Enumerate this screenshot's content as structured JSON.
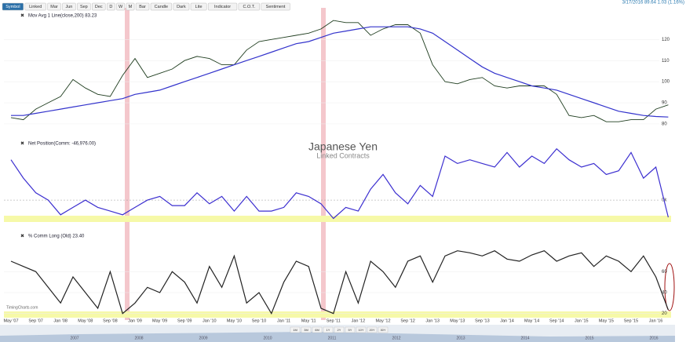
{
  "toolbar": [
    "Symbol",
    "Linked",
    "Mar",
    "Jun",
    "Sep",
    "Dec",
    "D",
    "W",
    "M",
    "Bar",
    "Candle",
    "Dark",
    "Lite",
    "Indicator",
    "C.O.T.",
    "Sentiment"
  ],
  "quote": "3/17/2016 89.64 1.03 (1.16%)",
  "watermark": {
    "title": "Japanese Yen",
    "subtitle": "Linked Contracts"
  },
  "brand": "TimingCharts.com",
  "timeframes": [
    "1M",
    "3M",
    "6M",
    "1Y",
    "2Y",
    "5Y",
    "10Y",
    "20Y",
    "30Y"
  ],
  "navigator_years": [
    "2007",
    "2008",
    "2009",
    "2010",
    "2011",
    "2012",
    "2013",
    "2014",
    "2015",
    "2016"
  ],
  "chart_data": [
    {
      "type": "line",
      "title": "Mov Avg 1 Line(close,200) 83.23",
      "grid": true,
      "ylim": [
        77,
        135
      ],
      "yticks": [
        80,
        90,
        100,
        110,
        120
      ],
      "series": [
        {
          "color": "#1f3d1f",
          "values": [
            83,
            82,
            87,
            90,
            93,
            101,
            97,
            94,
            93,
            103,
            111,
            102,
            104,
            106,
            110,
            112,
            111,
            108,
            108,
            115,
            119,
            120,
            121,
            122,
            123,
            125,
            129,
            128,
            128,
            122,
            125,
            127,
            127,
            123,
            108,
            100,
            99,
            101,
            102,
            98,
            97,
            98,
            98,
            98,
            94,
            84,
            83,
            84,
            81,
            81,
            82,
            82,
            87,
            89
          ]
        },
        {
          "color": "#3333cc",
          "values": [
            84,
            84,
            85,
            86,
            87,
            88,
            89,
            90,
            91,
            92,
            94,
            95,
            96,
            98,
            100,
            102,
            104,
            106,
            108,
            110,
            112,
            114,
            116,
            118,
            119,
            121,
            123,
            124,
            125,
            126,
            126,
            126,
            126,
            125,
            123,
            119,
            115,
            111,
            107,
            104,
            102,
            100,
            98,
            97,
            96,
            94,
            92,
            90,
            88,
            86,
            85,
            84,
            83.5,
            83.23
          ]
        }
      ]
    },
    {
      "type": "line",
      "title": "Net Position(Comm: -46,976.00)",
      "grid": true,
      "ylim": [
        -64,
        165
      ],
      "yticks": [
        {
          "value": 0,
          "label": "0k"
        }
      ],
      "series": [
        {
          "color": "#3c2fd0",
          "values": [
            110,
            60,
            20,
            0,
            -40,
            -20,
            0,
            -20,
            -30,
            -40,
            -20,
            0,
            10,
            -15,
            -15,
            20,
            -10,
            10,
            -30,
            10,
            -30,
            -30,
            -20,
            20,
            10,
            -10,
            -50,
            -20,
            -30,
            30,
            70,
            20,
            -10,
            40,
            10,
            120,
            100,
            110,
            100,
            90,
            130,
            90,
            120,
            100,
            140,
            110,
            90,
            100,
            70,
            80,
            130,
            60,
            90,
            -46.976
          ]
        }
      ]
    },
    {
      "type": "line",
      "title": "% Comm Long (Old) 23.40",
      "grid": true,
      "ylim": [
        16,
        91
      ],
      "yticks": [
        20,
        40,
        60
      ],
      "categories": [
        "May '07",
        null,
        "Sep '07",
        null,
        "Jan '08",
        null,
        "May '08",
        null,
        "Sep '08",
        null,
        "Jan '09",
        null,
        "May '09",
        null,
        "Sep '09",
        null,
        "Jan '10",
        null,
        "May '10",
        null,
        "Sep '10",
        null,
        "Jan '11",
        null,
        "May '11",
        null,
        "Sep '11",
        null,
        "Jan '12",
        null,
        "May '12",
        null,
        "Sep '12",
        null,
        "Jan '13",
        null,
        "May '13",
        null,
        "Sep '13",
        null,
        "Jan '14",
        null,
        "May '14",
        null,
        "Sep '14",
        null,
        "Jan '15",
        null,
        "May '15",
        null,
        "Sep '15",
        null,
        "Jan '16",
        null
      ],
      "series": [
        {
          "color": "#222222",
          "values": [
            70,
            65,
            60,
            45,
            30,
            55,
            40,
            25,
            60,
            20,
            30,
            45,
            40,
            60,
            50,
            30,
            65,
            45,
            75,
            30,
            40,
            20,
            50,
            70,
            65,
            25,
            20,
            60,
            30,
            70,
            60,
            45,
            70,
            75,
            50,
            75,
            80,
            78,
            75,
            80,
            72,
            70,
            76,
            80,
            70,
            75,
            78,
            65,
            75,
            70,
            60,
            75,
            55,
            23.4
          ]
        }
      ]
    }
  ]
}
